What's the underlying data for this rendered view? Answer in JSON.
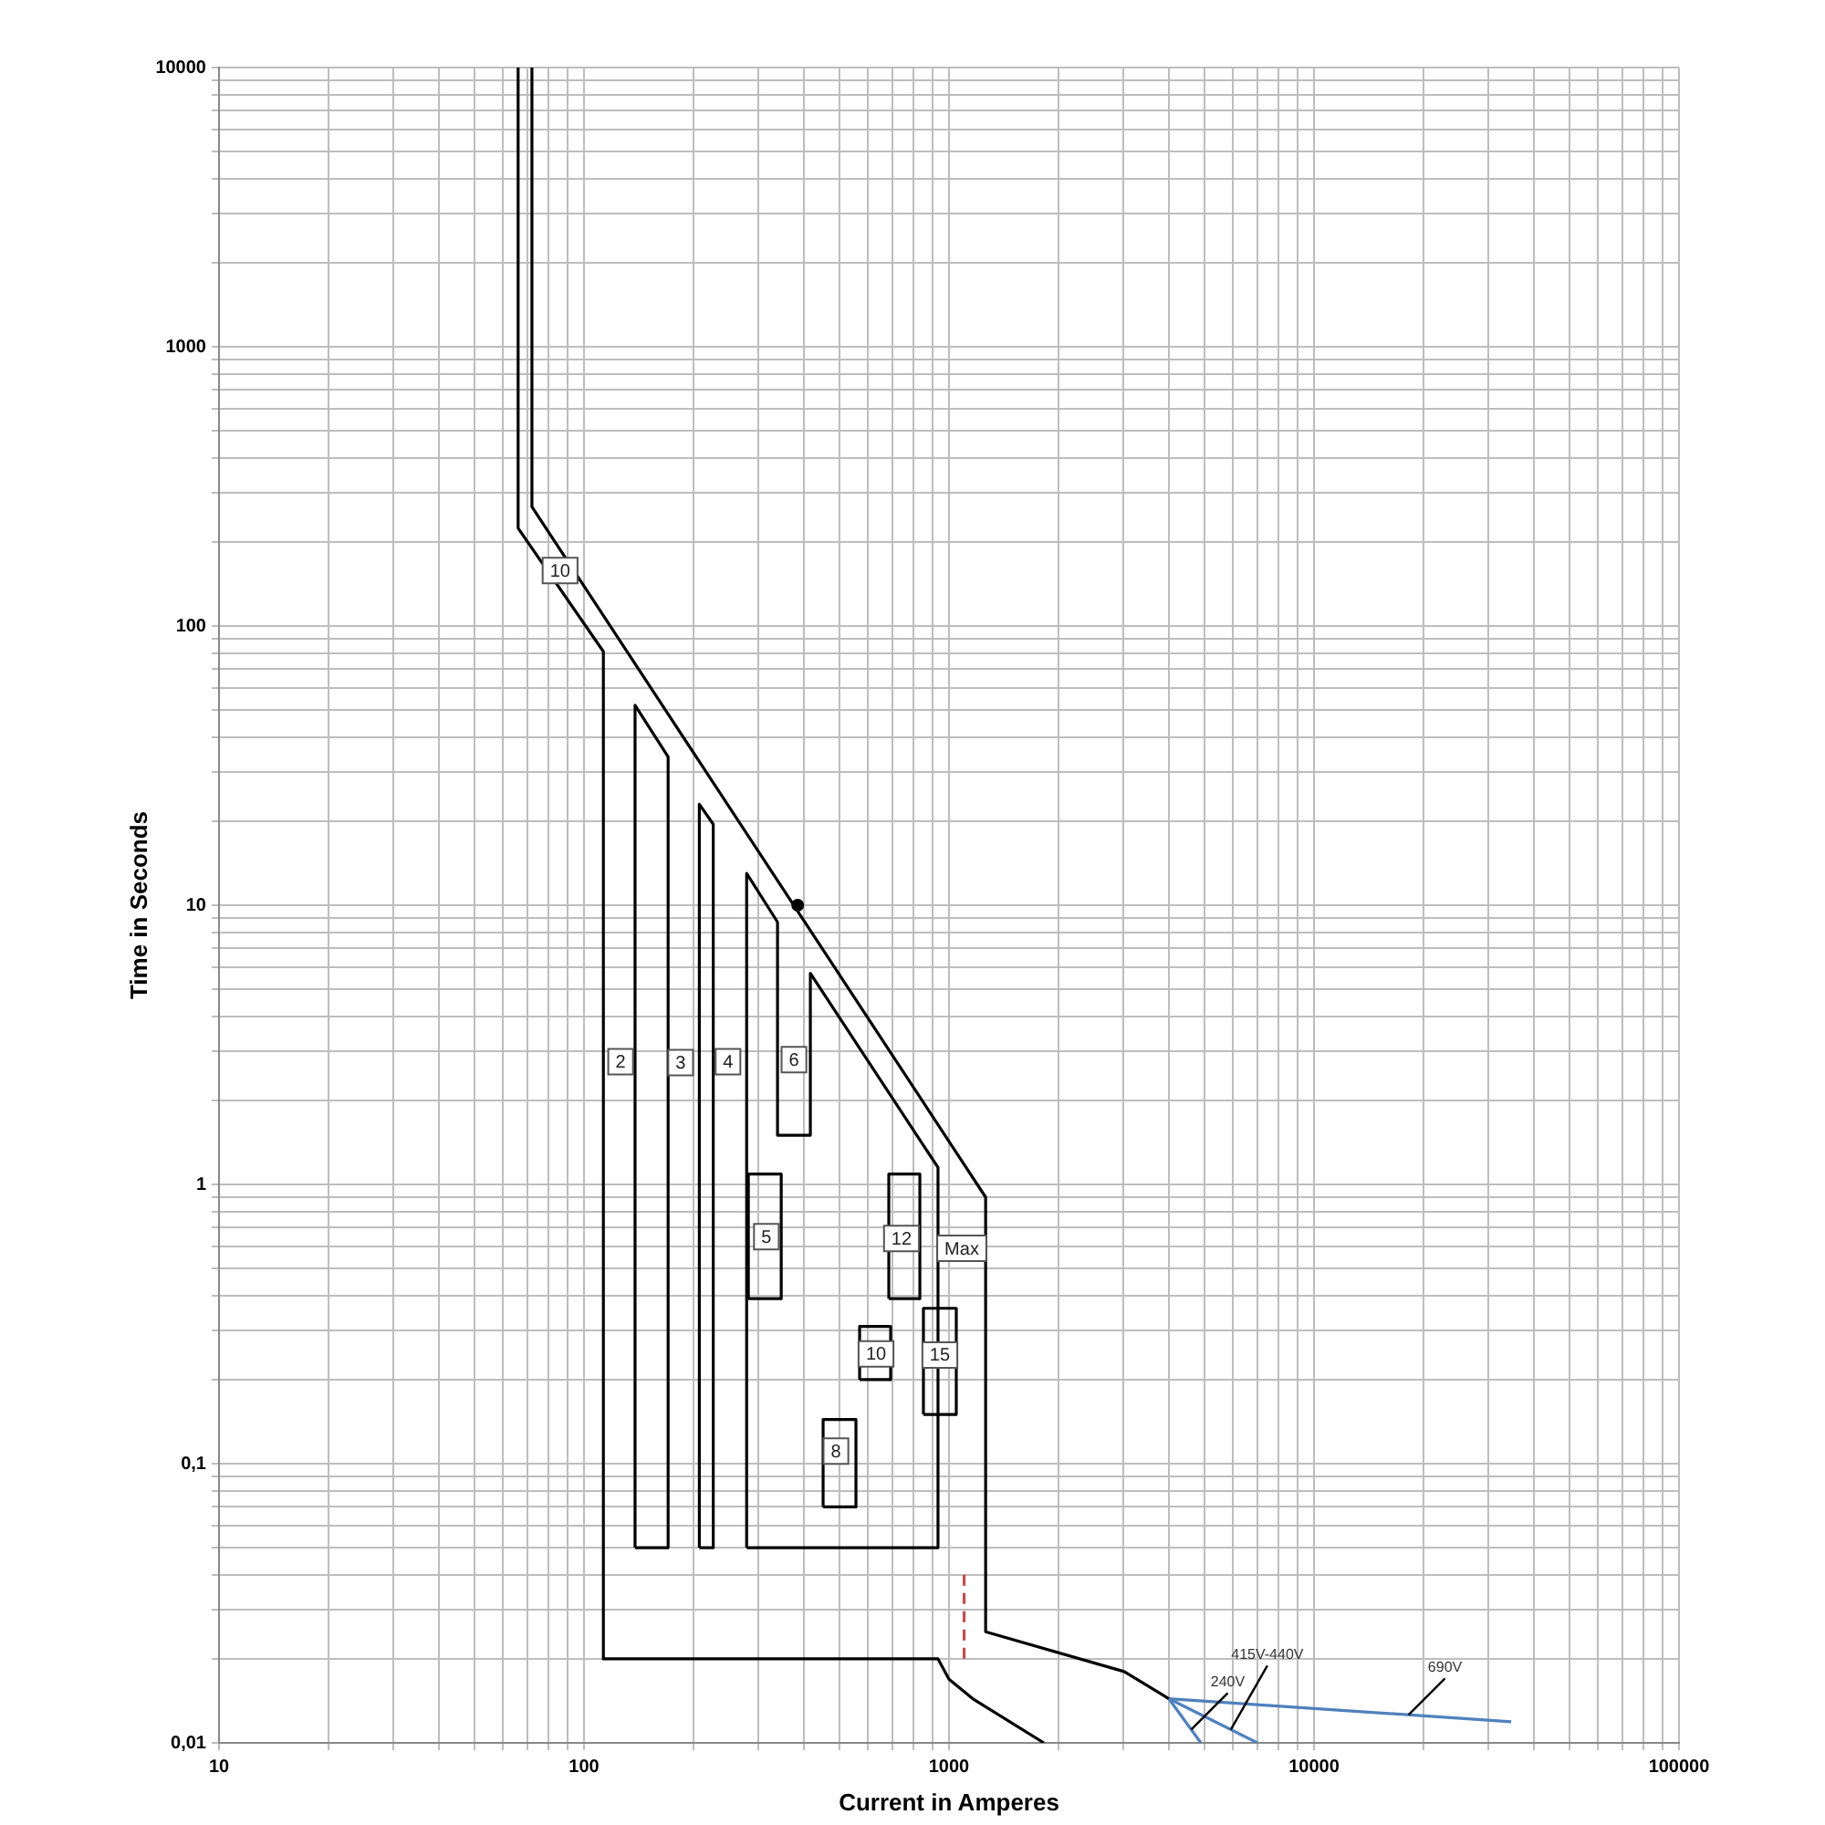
{
  "chart_data": {
    "type": "line",
    "xlabel": "Current in Amperes",
    "ylabel": "Time in Seconds",
    "log": "xy",
    "grid": true,
    "legend": false,
    "marker": "none",
    "line_style": "solid",
    "xlim": [
      10,
      100000
    ],
    "ylim": [
      0.01,
      10000
    ],
    "xticks": [
      10,
      {
        "value": 20,
        "label": null
      },
      {
        "value": 30,
        "label": null
      },
      {
        "value": 40,
        "label": null
      },
      {
        "value": 50,
        "label": null
      },
      {
        "value": 60,
        "label": null
      },
      {
        "value": 70,
        "label": null
      },
      {
        "value": 80,
        "label": null
      },
      {
        "value": 90,
        "label": null
      },
      100,
      {
        "value": 200,
        "label": null
      },
      {
        "value": 300,
        "label": null
      },
      {
        "value": 400,
        "label": null
      },
      {
        "value": 500,
        "label": null
      },
      {
        "value": 600,
        "label": null
      },
      {
        "value": 700,
        "label": null
      },
      {
        "value": 800,
        "label": null
      },
      {
        "value": 900,
        "label": null
      },
      1000,
      {
        "value": 2000,
        "label": null
      },
      {
        "value": 3000,
        "label": null
      },
      {
        "value": 4000,
        "label": null
      },
      {
        "value": 5000,
        "label": null
      },
      {
        "value": 6000,
        "label": null
      },
      {
        "value": 7000,
        "label": null
      },
      {
        "value": 8000,
        "label": null
      },
      {
        "value": 9000,
        "label": null
      },
      10000,
      {
        "value": 20000,
        "label": null
      },
      {
        "value": 30000,
        "label": null
      },
      {
        "value": 40000,
        "label": null
      },
      {
        "value": 50000,
        "label": null
      },
      {
        "value": 60000,
        "label": null
      },
      {
        "value": 70000,
        "label": null
      },
      {
        "value": 80000,
        "label": null
      },
      {
        "value": 90000,
        "label": null
      },
      100000
    ],
    "yticks": [
      {
        "value": 0.01,
        "label": "0,01"
      },
      {
        "value": 0.02,
        "label": null
      },
      {
        "value": 0.03,
        "label": null
      },
      {
        "value": 0.04,
        "label": null
      },
      {
        "value": 0.05,
        "label": null
      },
      {
        "value": 0.06,
        "label": null
      },
      {
        "value": 0.07,
        "label": null
      },
      {
        "value": 0.08,
        "label": null
      },
      {
        "value": 0.09,
        "label": null
      },
      {
        "value": 0.1,
        "label": "0,1"
      },
      {
        "value": 0.2,
        "label": null
      },
      {
        "value": 0.3,
        "label": null
      },
      {
        "value": 0.4,
        "label": null
      },
      {
        "value": 0.5,
        "label": null
      },
      {
        "value": 0.6,
        "label": null
      },
      {
        "value": 0.7,
        "label": null
      },
      {
        "value": 0.8,
        "label": null
      },
      {
        "value": 0.9,
        "label": null
      },
      1,
      {
        "value": 2,
        "label": null
      },
      {
        "value": 3,
        "label": null
      },
      {
        "value": 4,
        "label": null
      },
      {
        "value": 5,
        "label": null
      },
      {
        "value": 6,
        "label": null
      },
      {
        "value": 7,
        "label": null
      },
      {
        "value": 8,
        "label": null
      },
      {
        "value": 9,
        "label": null
      },
      10,
      {
        "value": 20,
        "label": null
      },
      {
        "value": 30,
        "label": null
      },
      {
        "value": 40,
        "label": null
      },
      {
        "value": 50,
        "label": null
      },
      {
        "value": 60,
        "label": null
      },
      {
        "value": 70,
        "label": null
      },
      {
        "value": 80,
        "label": null
      },
      {
        "value": 90,
        "label": null
      },
      100,
      {
        "value": 200,
        "label": null
      },
      {
        "value": 300,
        "label": null
      },
      {
        "value": 400,
        "label": null
      },
      {
        "value": 500,
        "label": null
      },
      {
        "value": 600,
        "label": null
      },
      {
        "value": 700,
        "label": null
      },
      {
        "value": 800,
        "label": null
      },
      {
        "value": 900,
        "label": null
      },
      1000,
      {
        "value": 2000,
        "label": null
      },
      {
        "value": 3000,
        "label": null
      },
      {
        "value": 4000,
        "label": null
      },
      {
        "value": 5000,
        "label": null
      },
      {
        "value": 6000,
        "label": null
      },
      {
        "value": 7000,
        "label": null
      },
      {
        "value": 8000,
        "label": null
      },
      {
        "value": 9000,
        "label": null
      },
      10000
    ],
    "series": [
      {
        "color": "#000000",
        "x": [
          72,
          72,
          1260,
          1260,
          3020,
          4000
        ],
        "values": [
          10000,
          267,
          0.9,
          0.025,
          0.018,
          0.0144
        ]
      },
      {
        "color": "#000000",
        "x": [
          66,
          66,
          113,
          113,
          933,
          1000,
          1161,
          1820
        ],
        "values": [
          10000,
          224,
          81,
          0.02,
          0.02,
          0.0169,
          0.0144,
          0.01
        ]
      },
      {
        "color": "#000000",
        "x": [
          138,
          138,
          170,
          170
        ],
        "values": [
          0.05,
          52,
          34,
          0.05
        ]
      },
      {
        "color": "#000000",
        "x": [
          138,
          170
        ],
        "values": [
          0.05,
          0.05
        ]
      },
      {
        "color": "#000000",
        "x": [
          207,
          207,
          226,
          226
        ],
        "values": [
          0.05,
          23,
          19.5,
          0.05
        ]
      },
      {
        "color": "#000000",
        "x": [
          207,
          226
        ],
        "values": [
          0.05,
          0.05
        ]
      },
      {
        "color": "#000000",
        "x": [
          279,
          279,
          339,
          339,
          417,
          417,
          933,
          933
        ],
        "values": [
          0.05,
          13,
          8.7,
          1.5,
          1.5,
          5.7,
          1.15,
          0.05
        ]
      },
      {
        "color": "#000000",
        "x": [
          279,
          933
        ],
        "values": [
          0.05,
          0.05
        ]
      },
      {
        "color": "#000000",
        "x": [
          282,
          282,
          347,
          347
        ],
        "values": [
          0.39,
          1.09,
          1.09,
          0.39
        ]
      },
      {
        "color": "#000000",
        "x": [
          282,
          347
        ],
        "values": [
          0.39,
          0.39
        ]
      },
      {
        "color": "#000000",
        "x": [
          684,
          684,
          832,
          832
        ],
        "values": [
          0.39,
          1.09,
          1.09,
          0.39
        ]
      },
      {
        "color": "#000000",
        "x": [
          684,
          832
        ],
        "values": [
          0.39,
          0.39
        ]
      },
      {
        "color": "#000000",
        "x": [
          569,
          569,
          692,
          692
        ],
        "values": [
          0.2,
          0.31,
          0.31,
          0.2
        ]
      },
      {
        "color": "#000000",
        "x": [
          569,
          692
        ],
        "values": [
          0.2,
          0.2
        ]
      },
      {
        "color": "#000000",
        "x": [
          851,
          851,
          1047,
          1047
        ],
        "values": [
          0.15,
          0.36,
          0.36,
          0.15
        ]
      },
      {
        "color": "#000000",
        "x": [
          851,
          1047
        ],
        "values": [
          0.15,
          0.15
        ]
      },
      {
        "color": "#000000",
        "x": [
          452,
          452,
          556,
          556
        ],
        "values": [
          0.07,
          0.144,
          0.144,
          0.07
        ]
      },
      {
        "color": "#000000",
        "x": [
          452,
          556
        ],
        "values": [
          0.07,
          0.07
        ]
      },
      {
        "color": "#c0504d",
        "line_style": "dashed",
        "x": [
          1100,
          1100
        ],
        "values": [
          0.04,
          0.02
        ]
      },
      {
        "name": "240V",
        "color": "#4f81bd",
        "x": [
          4000,
          4900
        ],
        "values": [
          0.0144,
          0.01
        ]
      },
      {
        "name": "415V-440V",
        "color": "#4f81bd",
        "x": [
          4000,
          7000
        ],
        "values": [
          0.0144,
          0.01
        ]
      },
      {
        "name": "690V",
        "color": "#4f81bd",
        "x": [
          4000,
          34700
        ],
        "values": [
          0.0144,
          0.0119
        ]
      },
      {
        "type": "scatter",
        "marker": "circle",
        "color": "#000000",
        "x": [
          385
        ],
        "values": [
          10
        ]
      }
    ],
    "annotations": [
      {
        "text": "10",
        "x": 86,
        "y": 158
      },
      {
        "text": "2",
        "x": 126,
        "y": 2.75
      },
      {
        "text": "3",
        "x": 184,
        "y": 2.73
      },
      {
        "text": "4",
        "x": 248,
        "y": 2.75
      },
      {
        "text": "6",
        "x": 376,
        "y": 2.8
      },
      {
        "text": "5",
        "x": 316,
        "y": 0.65
      },
      {
        "text": "12",
        "x": 741,
        "y": 0.64
      },
      {
        "text": "Max",
        "x": 1084,
        "y": 0.59
      },
      {
        "text": "10",
        "x": 631,
        "y": 0.247
      },
      {
        "text": "15",
        "x": 944,
        "y": 0.245
      },
      {
        "text": "8",
        "x": 490,
        "y": 0.111
      }
    ]
  }
}
